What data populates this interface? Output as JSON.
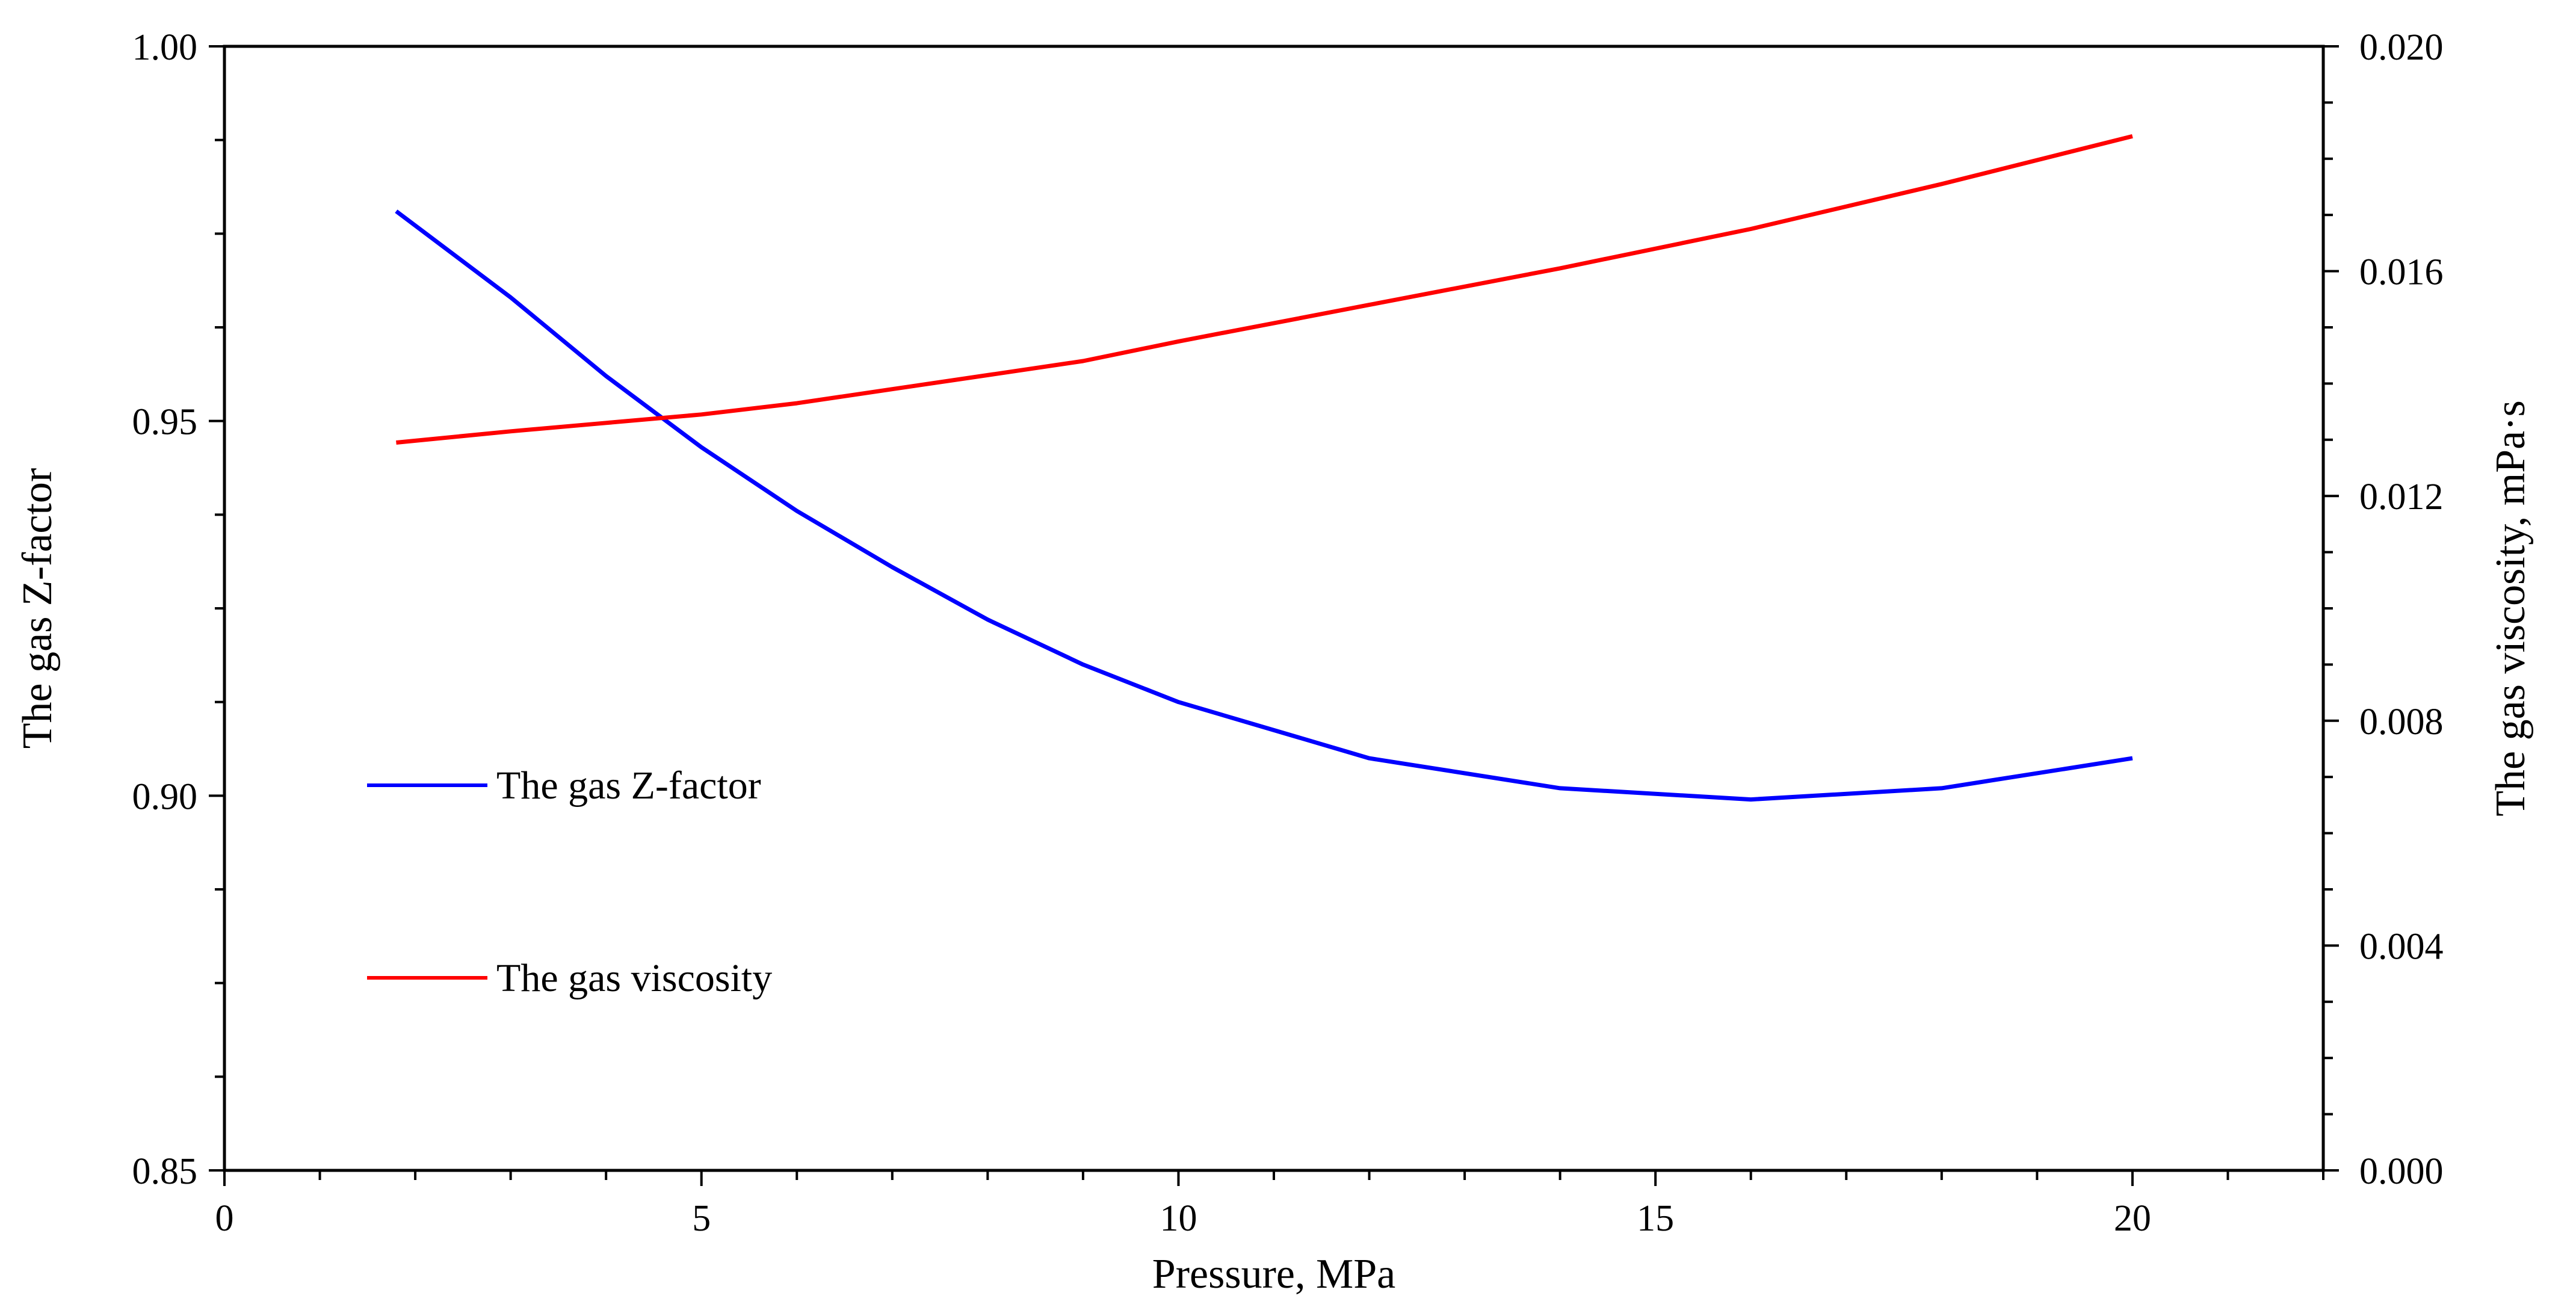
{
  "chart_data": {
    "type": "line",
    "title": "",
    "xlabel": "Pressure, MPa",
    "ylabel": "The gas Z-factor",
    "y2label": "The gas viscosity, mPa·s",
    "xlim": [
      0,
      22
    ],
    "ylim": [
      0.85,
      1.0
    ],
    "y2lim": [
      0.0,
      0.02
    ],
    "x_ticks": [
      0,
      5,
      10,
      15,
      20
    ],
    "x_tick_labels": [
      "0",
      "5",
      "10",
      "15",
      "20"
    ],
    "y_ticks": [
      0.85,
      0.9,
      0.95,
      1.0
    ],
    "y_tick_labels": [
      "0.85",
      "0.90",
      "0.95",
      "1.00"
    ],
    "y2_ticks": [
      0.0,
      0.004,
      0.008,
      0.012,
      0.016,
      0.02
    ],
    "y2_tick_labels": [
      "0.000",
      "0.004",
      "0.008",
      "0.012",
      "0.016",
      "0.020"
    ],
    "grid": false,
    "legend_position": "left-middle",
    "series": [
      {
        "name": "The gas Z-factor",
        "axis": "left",
        "color": "#0000FF",
        "x": [
          1.8,
          3,
          4,
          5,
          6,
          7,
          8,
          9,
          10,
          12,
          14,
          16,
          18,
          20
        ],
        "values": [
          0.978,
          0.9665,
          0.956,
          0.9465,
          0.938,
          0.9305,
          0.9235,
          0.9175,
          0.9125,
          0.905,
          0.901,
          0.8995,
          0.901,
          0.905
        ]
      },
      {
        "name": "The gas viscosity",
        "axis": "right",
        "color": "#FF0000",
        "x": [
          1.8,
          3,
          4,
          5,
          6,
          7,
          8,
          9,
          10,
          12,
          14,
          16,
          18,
          20
        ],
        "values": [
          0.01295,
          0.01315,
          0.0133,
          0.01345,
          0.01365,
          0.0139,
          0.01415,
          0.0144,
          0.01475,
          0.0154,
          0.01605,
          0.01675,
          0.01755,
          0.0184
        ]
      }
    ]
  }
}
